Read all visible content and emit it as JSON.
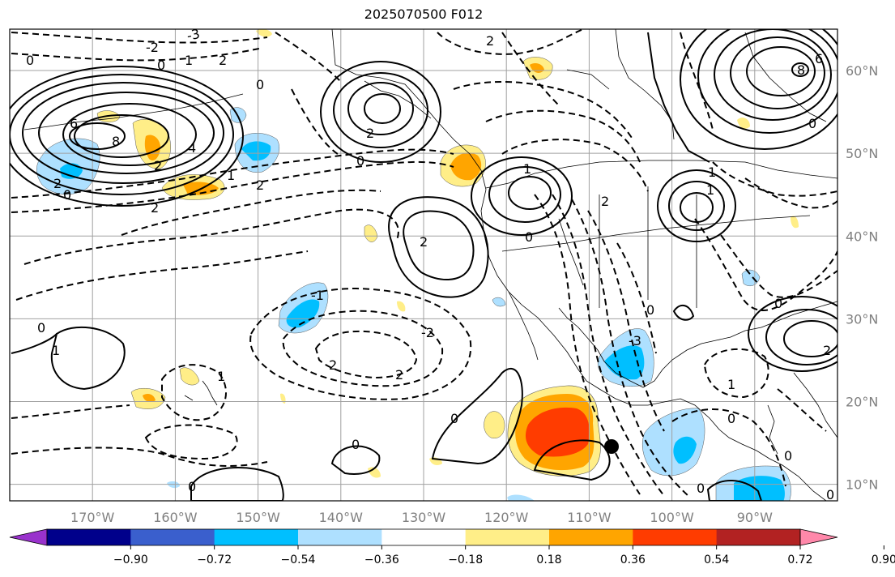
{
  "title": "2025070500 F012",
  "map": {
    "lon_range": [
      -180,
      -80
    ],
    "lat_range": [
      8,
      65
    ],
    "lon_ticks": [
      {
        "value": -170,
        "label": "170°W"
      },
      {
        "value": -160,
        "label": "160°W"
      },
      {
        "value": -150,
        "label": "150°W"
      },
      {
        "value": -140,
        "label": "140°W"
      },
      {
        "value": -130,
        "label": "130°W"
      },
      {
        "value": -120,
        "label": "120°W"
      },
      {
        "value": -110,
        "label": "110°W"
      },
      {
        "value": -100,
        "label": "100°W"
      },
      {
        "value": -90,
        "label": "90°W"
      }
    ],
    "lat_ticks": [
      {
        "value": 10,
        "label": "10°N"
      },
      {
        "value": 20,
        "label": "20°N"
      },
      {
        "value": 30,
        "label": "30°N"
      },
      {
        "value": 40,
        "label": "40°N"
      },
      {
        "value": 50,
        "label": "50°N"
      },
      {
        "value": 60,
        "label": "60°N"
      }
    ],
    "contour_labels": [
      "-3",
      "-2",
      "-1",
      "0",
      "1",
      "2",
      "4",
      "6",
      "8"
    ],
    "colors": {
      "light_yellow": "#ffee88",
      "orange": "#ffa500",
      "red_orange": "#ff3c00",
      "light_blue": "#aee0ff",
      "blue": "#00bfff"
    }
  },
  "colorbar": {
    "levels": [
      "−0.90",
      "−0.72",
      "−0.54",
      "−0.36",
      "−0.18",
      "0.18",
      "0.36",
      "0.54",
      "0.72",
      "0.90"
    ],
    "colors": [
      "#9932cc",
      "#00008b",
      "#3a5fcd",
      "#00bfff",
      "#aee0ff",
      "#ffffff",
      "#ffee88",
      "#ffa500",
      "#ff3c00",
      "#b22222",
      "#ff88aa"
    ]
  }
}
